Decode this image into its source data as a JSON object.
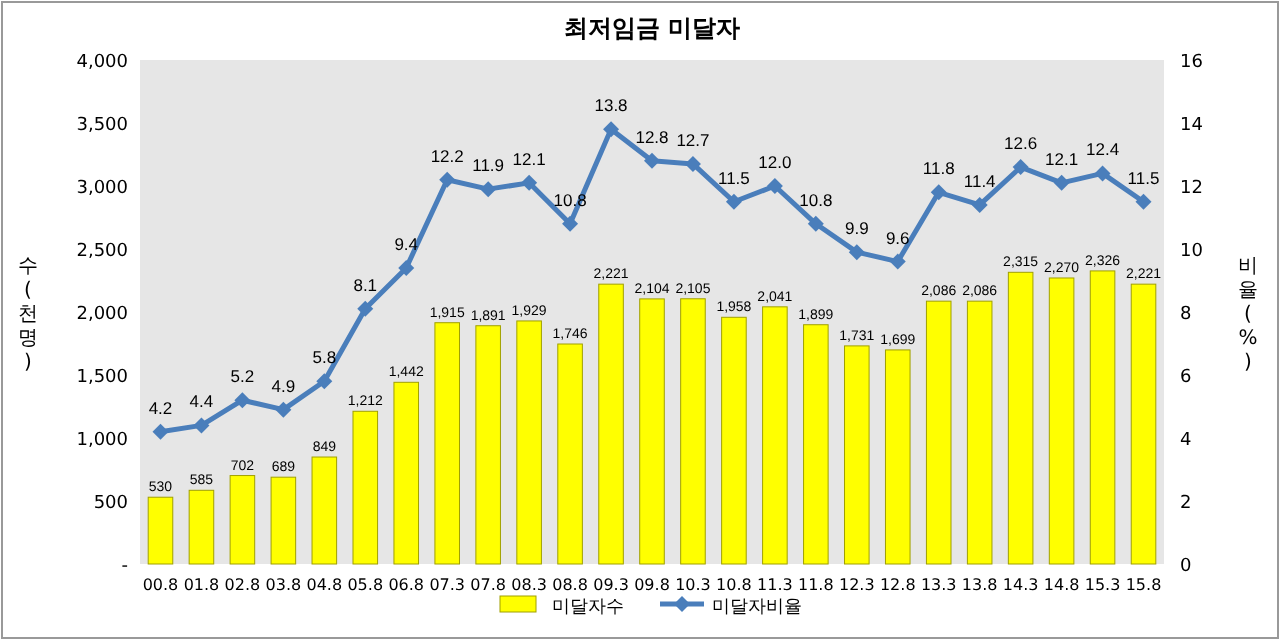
{
  "chart_data": {
    "type": "bar",
    "title": "최저임금 미달자",
    "ylabel": "수(천명)",
    "y2label": "비율(%)",
    "categories": [
      "00.8",
      "01.8",
      "02.8",
      "03.8",
      "04.8",
      "05.8",
      "06.8",
      "07.3",
      "07.8",
      "08.3",
      "08.8",
      "09.3",
      "09.8",
      "10.3",
      "10.8",
      "11.3",
      "11.8",
      "12.3",
      "12.8",
      "13.3",
      "13.8",
      "14.3",
      "14.8",
      "15.3",
      "15.8"
    ],
    "series": [
      {
        "name": "미달자수",
        "color": "#ffff00",
        "values": [
          530,
          585,
          702,
          689,
          849,
          1212,
          1442,
          1915,
          1891,
          1929,
          1746,
          2221,
          2104,
          2105,
          1958,
          2041,
          1899,
          1731,
          1699,
          2086,
          2086,
          2315,
          2270,
          2326,
          2221
        ],
        "value_labels": [
          "530",
          "585",
          "702",
          "689",
          "849",
          "1,212",
          "1,442",
          "1,915",
          "1,891",
          "1,929",
          "1,746",
          "2,221",
          "2,104",
          "2,105",
          "1,958",
          "2,041",
          "1,899",
          "1,731",
          "1,699",
          "2,086",
          "2,086",
          "2,315",
          "2,270",
          "2,326",
          "2,221"
        ]
      },
      {
        "name": "미달자비율",
        "type": "line",
        "axis": "y2",
        "color": "#4a7ebb",
        "marker": "diamond",
        "values": [
          4.2,
          4.4,
          5.2,
          4.9,
          5.8,
          8.1,
          9.4,
          12.2,
          11.9,
          12.1,
          10.8,
          13.8,
          12.8,
          12.7,
          11.5,
          12.0,
          10.8,
          9.9,
          9.6,
          11.8,
          11.4,
          12.6,
          12.1,
          12.4,
          11.5
        ],
        "value_labels": [
          "4.2",
          "4.4",
          "5.2",
          "4.9",
          "5.8",
          "8.1",
          "9.4",
          "12.2",
          "11.9",
          "12.1",
          "10.8",
          "13.8",
          "12.8",
          "12.7",
          "11.5",
          "12.0",
          "10.8",
          "9.9",
          "9.6",
          "11.8",
          "11.4",
          "12.6",
          "12.1",
          "12.4",
          "11.5"
        ]
      }
    ],
    "ylim": [
      0,
      4000
    ],
    "yticks": [
      {
        "value": 0,
        "label": "-"
      },
      {
        "value": 500,
        "label": "500"
      },
      {
        "value": 1000,
        "label": "1,000"
      },
      {
        "value": 1500,
        "label": "1,500"
      },
      {
        "value": 2000,
        "label": "2,000"
      },
      {
        "value": 2500,
        "label": "2,500"
      },
      {
        "value": 3000,
        "label": "3,000"
      },
      {
        "value": 3500,
        "label": "3,500"
      },
      {
        "value": 4000,
        "label": "4,000"
      }
    ],
    "y2lim": [
      0,
      16
    ],
    "y2ticks": [
      0,
      2,
      4,
      6,
      8,
      10,
      12,
      14,
      16
    ],
    "legend": "bottom",
    "grid": false
  }
}
